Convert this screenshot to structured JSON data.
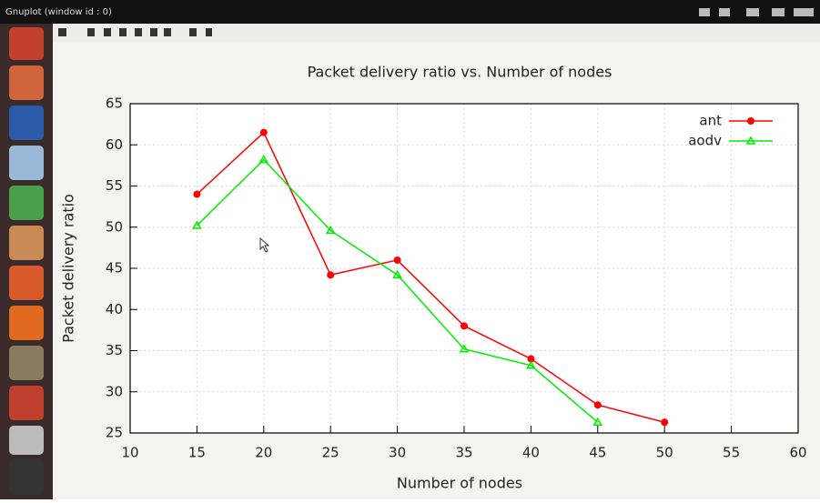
{
  "window": {
    "title": "Gnuplot (window id : 0)"
  },
  "chart_data": {
    "type": "line",
    "title": "Packet delivery ratio vs. Number of nodes",
    "x_label": "Number of nodes",
    "y_label": "Packet delivery ratio",
    "x": [
      15,
      20,
      25,
      30,
      35,
      40,
      45,
      50
    ],
    "series": [
      {
        "name": "ant",
        "color": "#ff0000",
        "values": [
          54,
          61.5,
          44.2,
          46,
          38,
          34,
          28.4,
          26.3
        ]
      },
      {
        "name": "aodv",
        "color": "#00ee00",
        "values": [
          50.2,
          58.2,
          49.6,
          44.2,
          35.2,
          33.2,
          26.3,
          null
        ]
      }
    ],
    "xlim": [
      10,
      60
    ],
    "xticks": [
      10,
      15,
      20,
      25,
      30,
      35,
      40,
      45,
      50,
      55,
      60
    ],
    "ylim": [
      25,
      65
    ],
    "yticks": [
      25,
      30,
      35,
      40,
      45,
      50,
      55,
      60,
      65
    ],
    "grid": true,
    "legend": "upper right"
  }
}
